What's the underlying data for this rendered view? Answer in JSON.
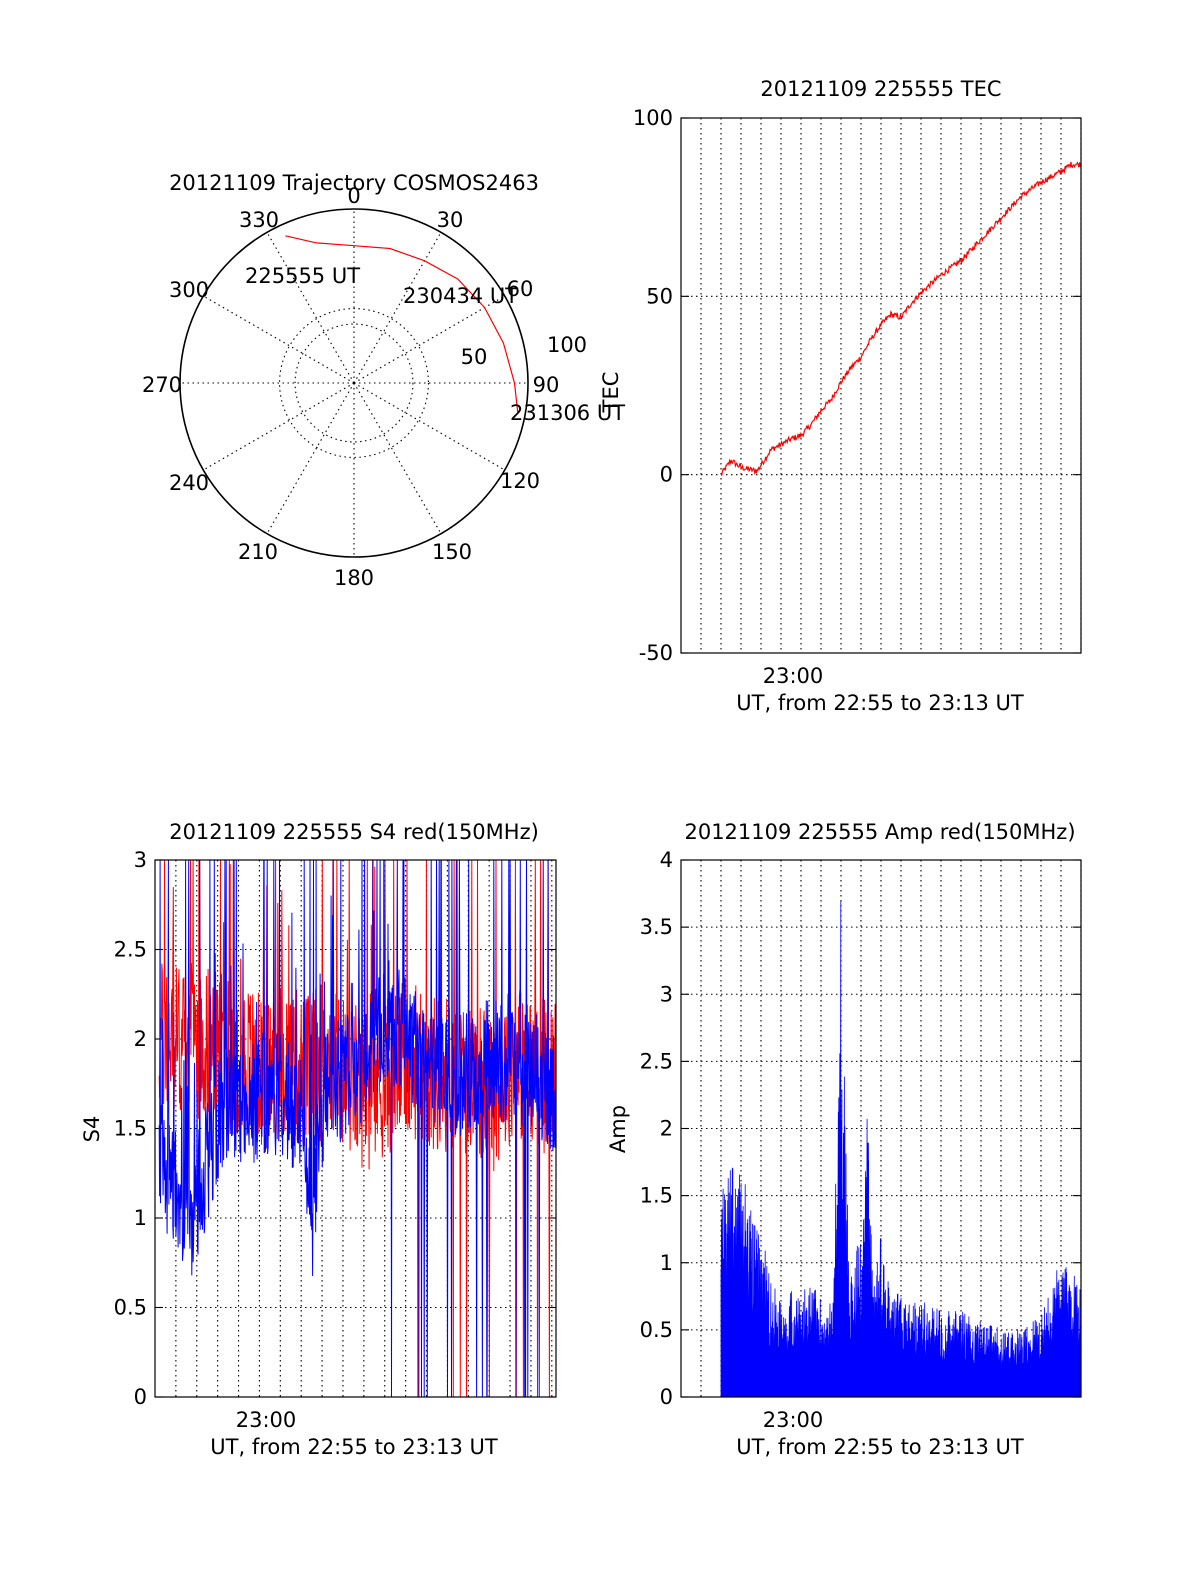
{
  "chart_data": [
    {
      "type": "polar",
      "title": "20121109 Trajectory COSMOS2463",
      "angle_labels": [
        "0",
        "30",
        "60",
        "90",
        "120",
        "150",
        "180",
        "210",
        "240",
        "270",
        "300",
        "330"
      ],
      "radius_labels": [
        "50",
        "100"
      ],
      "grid": true,
      "series": [
        {
          "color": "#ff0000",
          "points": [
            {
              "az": 335,
              "el": 6
            },
            {
              "az": 345,
              "el": 15
            },
            {
              "az": 0,
              "el": 19
            },
            {
              "az": 15,
              "el": 18
            },
            {
              "az": 30,
              "el": 17
            },
            {
              "az": 45,
              "el": 14
            },
            {
              "az": 60,
              "el": 12
            },
            {
              "az": 75,
              "el": 10
            },
            {
              "az": 90,
              "el": 7
            },
            {
              "az": 100,
              "el": 4
            }
          ]
        }
      ],
      "annotations": [
        "225555 UT",
        "230434 UT",
        "231306 UT"
      ]
    },
    {
      "type": "line",
      "title": "20121109 225555 TEC",
      "xlabel": "UT, from 22:55 to 23:13 UT",
      "ylabel": "TEC",
      "xlim_min": [
        -1,
        19
      ],
      "ylim": [
        -50,
        100
      ],
      "yticks": [
        "100",
        "50",
        "0",
        "-50"
      ],
      "xticks": [
        "23:00"
      ],
      "grid": true,
      "series": [
        {
          "color": "#ff0000",
          "x": [
            1,
            1.5,
            2,
            2.8,
            3.5,
            4.5,
            5,
            5.5,
            6,
            6.5,
            7,
            7.5,
            8,
            8.5,
            9,
            9.5,
            10,
            10.5,
            11,
            12,
            13,
            14,
            14.5,
            15,
            16,
            17,
            18,
            18.5,
            19
          ],
          "y": [
            0,
            4,
            2,
            1,
            7,
            10,
            11,
            14,
            18,
            21,
            26,
            30,
            33,
            38,
            42,
            45,
            44,
            48,
            51,
            56,
            60,
            66,
            69,
            72,
            78,
            82,
            85,
            87,
            87
          ]
        }
      ]
    },
    {
      "type": "line",
      "title": "20121109 225555 S4 red(150MHz)",
      "xlabel": "UT, from 22:55 to 23:13 UT",
      "ylabel": "S4",
      "xlim_min": [
        -0.2,
        19
      ],
      "ylim": [
        0,
        3
      ],
      "yticks": [
        "3",
        "2.5",
        "2",
        "1.5",
        "1",
        "0.5",
        "0"
      ],
      "xticks": [
        "23:00"
      ],
      "grid": true,
      "series": [
        {
          "color": "#0000ff",
          "x": [
            0,
            0.5,
            1,
            1.5,
            2,
            3,
            4,
            5,
            6,
            7,
            7.3,
            7.6,
            8,
            9,
            10,
            11,
            12,
            13,
            14,
            15,
            16,
            17,
            18,
            19
          ],
          "y": [
            1.3,
            1.2,
            1.1,
            1.0,
            1.2,
            1.6,
            1.6,
            1.7,
            1.7,
            1.5,
            0.9,
            1.4,
            1.7,
            1.8,
            1.9,
            2.1,
            2.0,
            1.9,
            1.8,
            1.8,
            1.9,
            1.8,
            1.8,
            1.7
          ]
        },
        {
          "color": "#ff0000",
          "x": [
            0,
            1,
            2,
            3,
            4,
            5,
            6,
            7,
            8,
            9,
            10,
            11,
            12,
            13,
            14,
            15,
            16,
            17,
            18,
            19
          ],
          "y": [
            2.0,
            2.0,
            2.0,
            1.9,
            1.9,
            1.8,
            1.9,
            1.8,
            1.9,
            1.8,
            1.7,
            1.8,
            1.9,
            1.8,
            1.8,
            1.8,
            1.7,
            1.9,
            1.8,
            1.8
          ]
        }
      ]
    },
    {
      "type": "area",
      "title": "20121109 225555 Amp red(150MHz)",
      "xlabel": "UT, from 22:55 to 23:13 UT",
      "ylabel": "Amp",
      "xlim_min": [
        -1,
        19
      ],
      "ylim": [
        0,
        4
      ],
      "yticks": [
        "4",
        "3.5",
        "3",
        "2.5",
        "2",
        "1.5",
        "1",
        "0.5",
        "0"
      ],
      "xticks": [
        "23:00"
      ],
      "grid": true,
      "series": [
        {
          "color": "#0000ff",
          "x": [
            1,
            1.5,
            2,
            2.5,
            3,
            3.5,
            4,
            4.5,
            5,
            5.5,
            6,
            6.5,
            6.8,
            7,
            7.2,
            7.5,
            8,
            8.3,
            8.6,
            9,
            9.5,
            10,
            10.5,
            11,
            12,
            13,
            14,
            15,
            16,
            17,
            17.5,
            18,
            18.5,
            19
          ],
          "y": [
            1.1,
            1.2,
            1.2,
            1.0,
            0.9,
            0.6,
            0.55,
            0.55,
            0.55,
            0.6,
            0.5,
            0.5,
            1.3,
            2.9,
            1.5,
            0.6,
            0.9,
            1.6,
            0.6,
            0.9,
            0.5,
            0.55,
            0.5,
            0.5,
            0.45,
            0.45,
            0.4,
            0.35,
            0.35,
            0.45,
            0.6,
            0.7,
            0.65,
            0.6
          ]
        }
      ]
    }
  ]
}
